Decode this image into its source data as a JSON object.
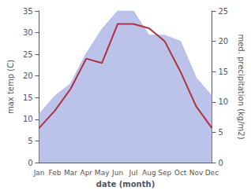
{
  "chart_data": {
    "type": "line",
    "categories": [
      "Jan",
      "Feb",
      "Mar",
      "Apr",
      "May",
      "Jun",
      "Jul",
      "Aug",
      "Sep",
      "Oct",
      "Nov",
      "Dec"
    ],
    "xlabel": "date (month)",
    "ylabel": "max temp (C)",
    "y2label": "med. precipitation (kg/m2)",
    "ylim": [
      0,
      35
    ],
    "yticks": [
      0,
      5,
      10,
      15,
      20,
      25,
      30,
      35
    ],
    "y2lim": [
      0,
      25
    ],
    "y2ticks": [
      0,
      5,
      10,
      15,
      20,
      25
    ],
    "grid": false,
    "series": [
      {
        "type": "area",
        "axis": "y2",
        "color": "#b0b8e8",
        "values": [
          8,
          11,
          13,
          18,
          22,
          25,
          25,
          21,
          21,
          20,
          14,
          11
        ]
      },
      {
        "type": "line",
        "color": "#b03040",
        "values": [
          8,
          12,
          17,
          24,
          23,
          32,
          32,
          31,
          28,
          21,
          13,
          8
        ]
      }
    ]
  }
}
